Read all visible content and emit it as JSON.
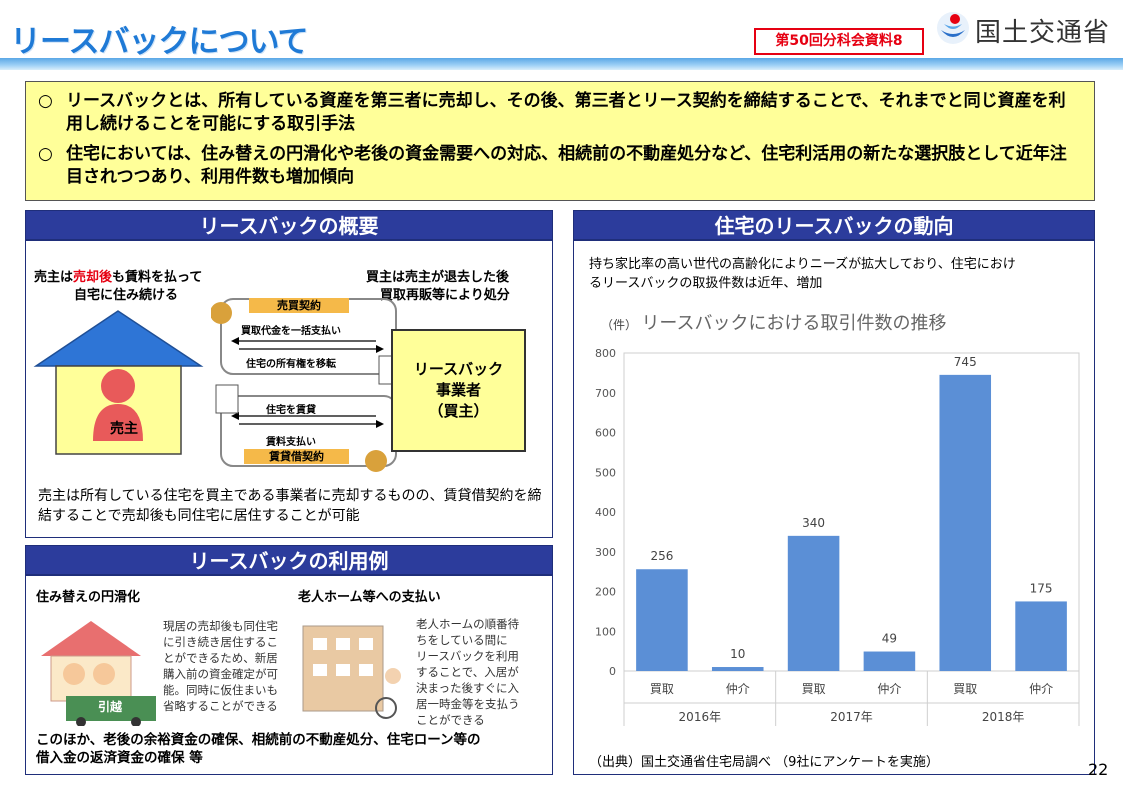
{
  "header": {
    "title": "リースバックについて",
    "badge": "第50回分科会資料8",
    "ministry": "国土交通省",
    "page_number": "22"
  },
  "intro": {
    "bullets": [
      {
        "mark": "○",
        "text": "リースバックとは、所有している資産を第三者に売却し、その後、第三者とリース契約を締結することで、それまでと同じ資産を利用し続けることを可能にする取引手法"
      },
      {
        "mark": "○",
        "text": "住宅においては、住み替えの円滑化や老後の資金需要への対応、相続前の不動産処分など、住宅利活用の新たな選択肢として近年注目されつつあり、利用件数も増加傾向"
      }
    ]
  },
  "overview": {
    "heading": "リースバックの概要",
    "seller_desc_1a": "売主は",
    "seller_desc_1b": "売却後",
    "seller_desc_1c": "も賃料を払って",
    "seller_desc_2": "自宅に住み続ける",
    "buyer_desc_1": "買主は売主が退去した後",
    "buyer_desc_2": "買取再販等により処分",
    "sale_contract": "売買契約",
    "lump_payment": "買取代金を一括支払い",
    "ownership_transfer": "住宅の所有権を移転",
    "lease_out": "住宅を賃貸",
    "rent_payment": "賃料支払い",
    "lease_contract": "賃貸借契約",
    "seller_label": "売主",
    "operator_label": [
      "リースバック",
      "事業者",
      "（買主）"
    ],
    "summary": "売主は所有している住宅を買主である事業者に売却するものの、賃貸借契約を締結することで売却後も同住宅に居住することが可能"
  },
  "usage": {
    "heading": "リースバックの利用例",
    "case1_title": "住み替えの円滑化",
    "case1_text": [
      "現居の売却後も同住宅",
      "に引き続き居住するこ",
      "とができるため、新居",
      "購入前の資金確定が可",
      "能。同時に仮住まいも",
      "省略することができる"
    ],
    "case2_title": "老人ホーム等への支払い",
    "case2_text": [
      "老人ホームの順番待",
      "ちをしている間に",
      "リースバックを利用",
      "することで、入居が",
      "決まった後すぐに入",
      "居一時金等を支払う",
      "ことができる"
    ],
    "truck_label": "引越",
    "footer": [
      "このほか、老後の余裕資金の確保、相続前の不動産処分、住宅ローン等の",
      "借入金の返済資金の確保 等"
    ]
  },
  "trend": {
    "heading": "住宅のリースバックの動向",
    "desc": [
      "持ち家比率の高い世代の高齢化によりニーズが拡大しており、住宅におけ",
      "るリースバックの取扱件数は近年、増加"
    ],
    "source": "（出典）国土交通省住宅局調べ （9社にアンケートを実施）"
  },
  "chart_data": {
    "type": "bar",
    "title": "リースバックにおける取引件数の推移",
    "ylabel": "（件）",
    "ylim": [
      0,
      800
    ],
    "yticks": [
      0,
      100,
      200,
      300,
      400,
      500,
      600,
      700,
      800
    ],
    "categories": [
      "買取",
      "仲介",
      "買取",
      "仲介",
      "買取",
      "仲介"
    ],
    "groups": [
      "2016年",
      "2017年",
      "2018年"
    ],
    "values": [
      256,
      10,
      340,
      49,
      745,
      175
    ],
    "bar_color": "#5b8fd6",
    "grid": false
  }
}
